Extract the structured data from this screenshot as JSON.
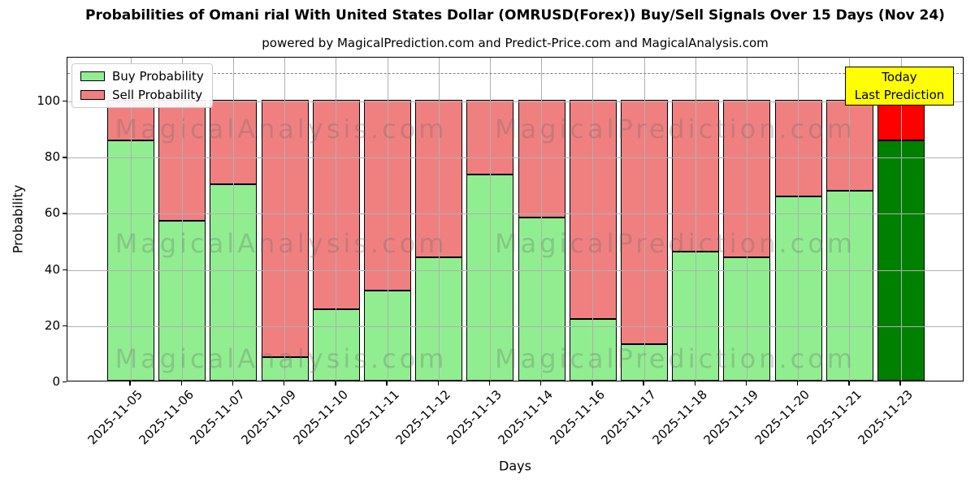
{
  "header": {
    "title": "Probabilities of Omani rial With United States Dollar (OMRUSD(Forex)) Buy/Sell Signals Over 15 Days (Nov 24)",
    "subtitle": "powered by MagicalPrediction.com and Predict-Price.com and MagicalAnalysis.com"
  },
  "chart_data": {
    "type": "bar",
    "stacked": true,
    "title": "Probabilities of Omani rial With United States Dollar (OMRUSD(Forex)) Buy/Sell Signals Over 15 Days (Nov 24)",
    "subtitle": "powered by MagicalPrediction.com and Predict-Price.com and MagicalAnalysis.com",
    "xlabel": "Days",
    "ylabel": "Probability",
    "ylim": [
      0,
      115.6
    ],
    "yticks": [
      0,
      20,
      40,
      60,
      80,
      100
    ],
    "grid": true,
    "legend_position": "upper-left",
    "dashed_guide_y": 110,
    "categories": [
      "2025-11-05",
      "2025-11-06",
      "2025-11-07",
      "2025-11-09",
      "2025-11-10",
      "2025-11-11",
      "2025-11-12",
      "2025-11-13",
      "2025-11-14",
      "2025-11-16",
      "2025-11-17",
      "2025-11-18",
      "2025-11-19",
      "2025-11-20",
      "2025-11-21",
      "2025-11-23"
    ],
    "series": [
      {
        "name": "Buy Probability",
        "color": "#90ee90",
        "values": [
          85.5,
          57,
          70,
          8.5,
          25.5,
          32,
          44,
          73.5,
          58,
          22,
          13,
          46,
          44,
          65.5,
          67.5,
          85.5
        ]
      },
      {
        "name": "Sell Probability",
        "color": "#f08080",
        "values": [
          14.5,
          43,
          30,
          91.5,
          74.5,
          68,
          56,
          26.5,
          42,
          78,
          87,
          54,
          56,
          34.5,
          32.5,
          14.5
        ]
      }
    ],
    "today_bar": {
      "index": 15,
      "buy_color": "#008000",
      "sell_color": "#ff0000"
    },
    "annotation": {
      "lines": [
        "Today",
        "Last Prediction"
      ],
      "bg": "#ffff00"
    },
    "watermarks": [
      "MagicalAnalysis.com",
      "MagicalPrediction.com"
    ],
    "colors": {
      "grid": "#b0b0b0",
      "bar_edge": "#000000",
      "dashed_guide": "#7f7f7f"
    }
  }
}
